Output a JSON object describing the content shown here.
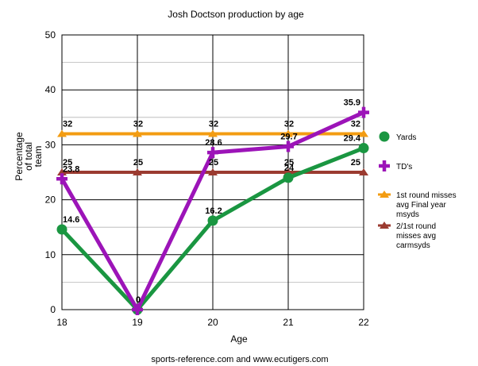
{
  "chart_data": {
    "type": "line",
    "title": "Josh Doctson production by age",
    "xlabel": "Age",
    "ylabel": "Percentage of total team",
    "ylabel_lines": [
      "Percentage",
      "of total",
      "team"
    ],
    "source": "sports-reference.com and www.ecutigers.com",
    "x": [
      "18",
      "19",
      "20",
      "21",
      "22"
    ],
    "ylim": [
      0,
      50
    ],
    "yticks": [
      0,
      10,
      20,
      30,
      40,
      50
    ],
    "grid": true,
    "legend_position": "right",
    "series": [
      {
        "name": "Yards",
        "legend_lines": [
          "Yards"
        ],
        "values": [
          14.6,
          0,
          16.2,
          24,
          29.4
        ],
        "labels": [
          "14.6",
          "0",
          "16.2",
          "24",
          "29.4"
        ],
        "color": "#1a9641",
        "marker": "circle"
      },
      {
        "name": "TD's",
        "legend_lines": [
          "TD's"
        ],
        "values": [
          23.8,
          0,
          28.6,
          29.7,
          35.9
        ],
        "labels": [
          "23.8",
          "0",
          "28.6",
          "29.7",
          "35.9"
        ],
        "color": "#9c14b8",
        "marker": "plus"
      },
      {
        "name": "1st round misses avg Final year msyds",
        "legend_lines": [
          "1st round misses",
          "avg Final year",
          "msyds"
        ],
        "values": [
          32,
          32,
          32,
          32,
          32
        ],
        "labels": [
          "32",
          "32",
          "32",
          "32",
          "32"
        ],
        "color": "#f39c12",
        "marker": "triangle"
      },
      {
        "name": "2/1st round misses avg carmsyds",
        "legend_lines": [
          "2/1st round",
          "misses avg",
          "carmsyds"
        ],
        "values": [
          25,
          25,
          25,
          25,
          25
        ],
        "labels": [
          "25",
          "25",
          "25",
          "25",
          "25"
        ],
        "color": "#9b3b30",
        "marker": "triangle"
      }
    ]
  }
}
